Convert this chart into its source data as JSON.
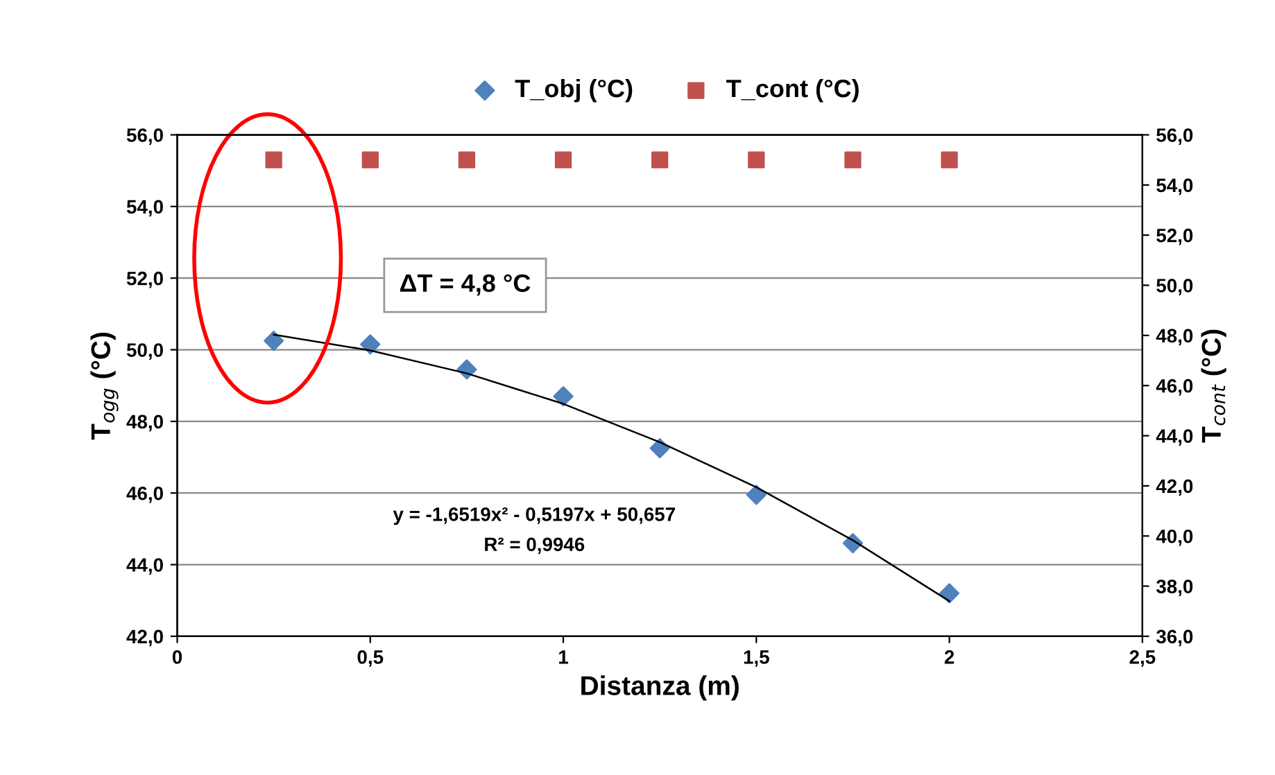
{
  "chart_data": {
    "type": "scatter",
    "xlabel": "Distanza (m)",
    "ylabel": "T$_{ogg}$ (°C)",
    "y2label": "T$_{cont}$ (°C)",
    "series": [
      {
        "name": "T_obj (°C)",
        "marker": "diamond",
        "color": "#4f81bd",
        "x": [
          0.25,
          0.5,
          0.75,
          1,
          1.25,
          1.5,
          1.75,
          2
        ],
        "values": [
          50.25,
          50.15,
          49.45,
          48.7,
          47.25,
          45.95,
          44.6,
          43.2
        ]
      },
      {
        "name": "T_cont (°C)",
        "marker": "square",
        "color": "#c0504d",
        "axis": "y2",
        "x": [
          0.25,
          0.5,
          0.75,
          1,
          1.25,
          1.5,
          1.75,
          2
        ],
        "values": [
          55.0,
          55.0,
          55.0,
          55.0,
          55.0,
          55.0,
          55.0,
          55.0
        ]
      },
      {
        "type": "line",
        "color": "#000000",
        "x": [
          0.25,
          0.5,
          0.75,
          1,
          1.25,
          1.5,
          1.75,
          2
        ],
        "values": [
          50.42,
          49.98,
          49.34,
          48.49,
          47.42,
          46.16,
          44.68,
          42.98
        ]
      }
    ],
    "xlim": [
      0,
      2.5
    ],
    "xticks": [
      0,
      {
        "value": 0.5,
        "label": "0,5"
      },
      1,
      {
        "value": 1.5,
        "label": "1,5"
      },
      2,
      {
        "value": 2.5,
        "label": "2,5"
      }
    ],
    "ylim": [
      42,
      56
    ],
    "yticks": [
      {
        "value": 42,
        "label": "42,0"
      },
      {
        "value": 44,
        "label": "44,0"
      },
      {
        "value": 46,
        "label": "46,0"
      },
      {
        "value": 48,
        "label": "48,0"
      },
      {
        "value": 50,
        "label": "50,0"
      },
      {
        "value": 52,
        "label": "52,0"
      },
      {
        "value": 54,
        "label": "54,0"
      },
      {
        "value": 56,
        "label": "56,0"
      }
    ],
    "y2lim": [
      36,
      56
    ],
    "y2ticks": [
      {
        "value": 36,
        "label": "36,0"
      },
      {
        "value": 38,
        "label": "38,0"
      },
      {
        "value": 40,
        "label": "40,0"
      },
      {
        "value": 42,
        "label": "42,0"
      },
      {
        "value": 44,
        "label": "44,0"
      },
      {
        "value": 46,
        "label": "46,0"
      },
      {
        "value": 48,
        "label": "48,0"
      },
      {
        "value": 50,
        "label": "50,0"
      },
      {
        "value": 52,
        "label": "52,0"
      },
      {
        "value": 54,
        "label": "54,0"
      },
      {
        "value": 56,
        "label": "56,0"
      }
    ],
    "grid": "y",
    "legend": "top",
    "annotations": [
      "ΔT = 4,8 °C",
      "y = -1,6519x² - 0,5197x + 50,657",
      "R² = 0,9946"
    ]
  }
}
